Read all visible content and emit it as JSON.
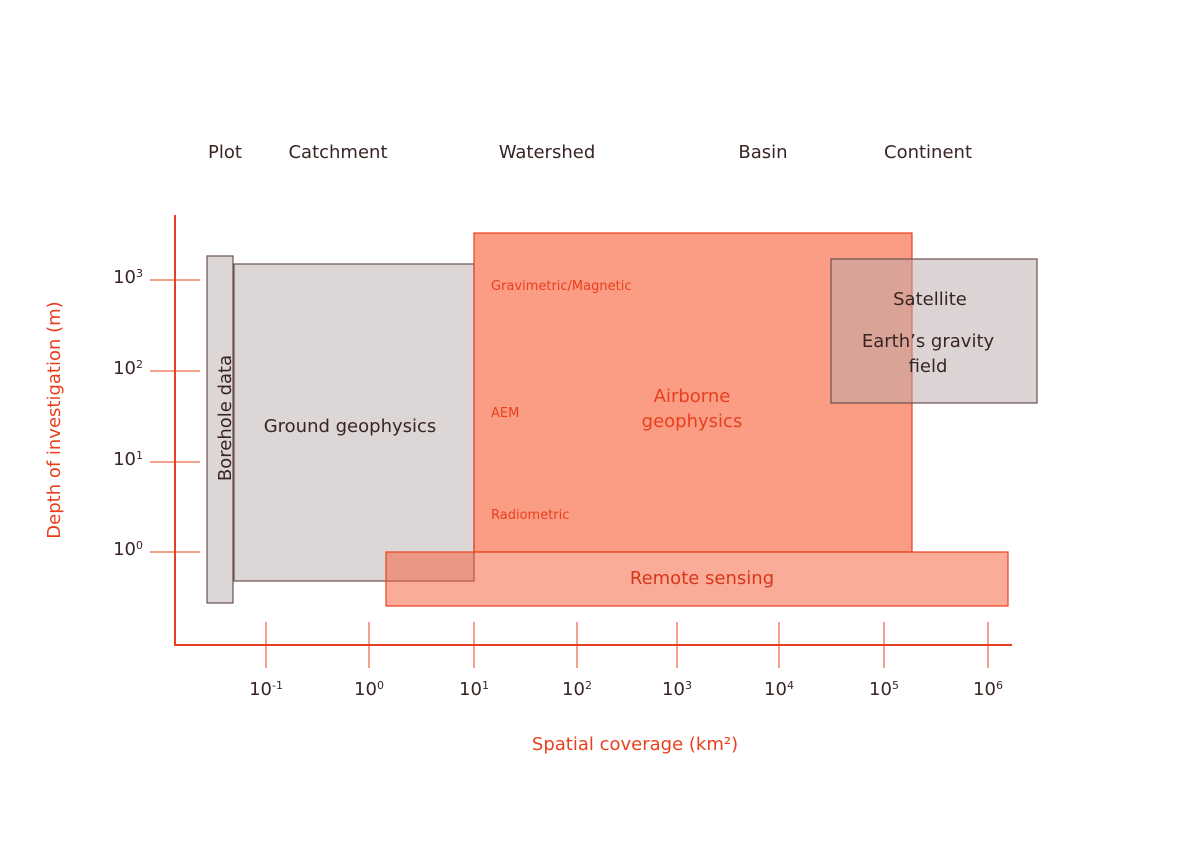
{
  "scale_labels": [
    "Plot",
    "Catchment",
    "Watershed",
    "Basin",
    "Continent"
  ],
  "y_axis": {
    "title": "Depth of investigation (m)",
    "ticks": [
      {
        "base": "10",
        "exp": "3"
      },
      {
        "base": "10",
        "exp": "2"
      },
      {
        "base": "10",
        "exp": "1"
      },
      {
        "base": "10",
        "exp": "0"
      }
    ]
  },
  "x_axis": {
    "title": "Spatial coverage (km²)",
    "ticks": [
      {
        "base": "10",
        "exp": "-1"
      },
      {
        "base": "10",
        "exp": "0"
      },
      {
        "base": "10",
        "exp": "1"
      },
      {
        "base": "10",
        "exp": "2"
      },
      {
        "base": "10",
        "exp": "3"
      },
      {
        "base": "10",
        "exp": "4"
      },
      {
        "base": "10",
        "exp": "5"
      },
      {
        "base": "10",
        "exp": "6"
      }
    ]
  },
  "boxes": {
    "borehole": "Borehole data",
    "ground": "Ground geophysics",
    "airborne": [
      "Airborne",
      "geophysics"
    ],
    "airborne_methods": [
      "Gravimetric/Magnetic",
      "AEM",
      "Radiometric"
    ],
    "satellite": "Satellite",
    "gravity": [
      "Earth’s gravity",
      "field"
    ],
    "remote": "Remote sensing"
  }
}
